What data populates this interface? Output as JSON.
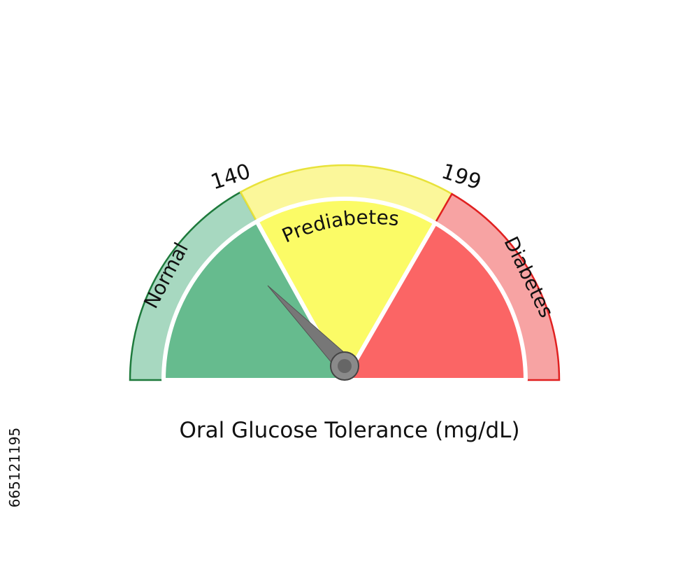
{
  "gauge": {
    "title": "Oral Glucose Tolerance (mg/dL)",
    "zones": [
      {
        "label": "Normal"
      },
      {
        "label": "Prediabetes"
      },
      {
        "label": "Diabetes"
      }
    ],
    "thresholds": [
      "140",
      "199"
    ]
  },
  "watermark_id": "665121195"
}
